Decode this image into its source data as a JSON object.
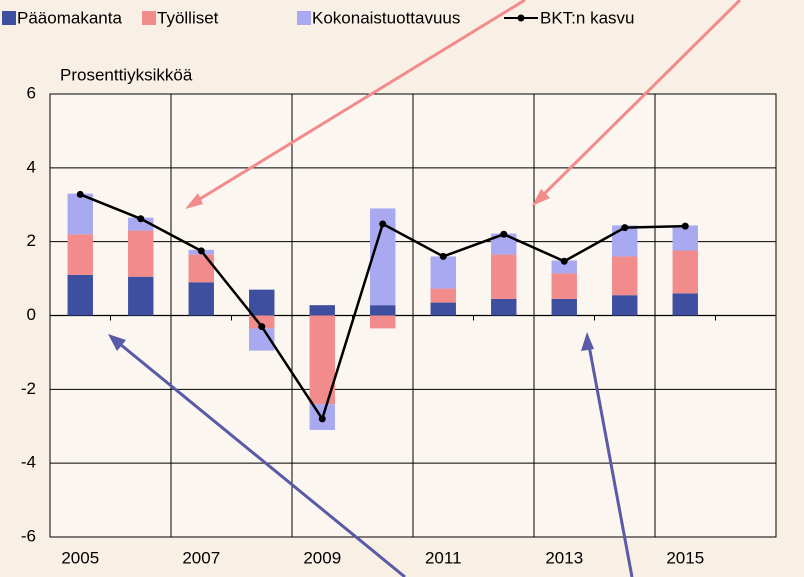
{
  "chart_data": {
    "type": "bar",
    "stacked": true,
    "ylabel": "Prosenttiyksikköä",
    "categories": [
      "2005",
      null,
      "2007",
      null,
      "2009",
      null,
      "2011",
      null,
      "2013",
      null,
      "2015",
      null
    ],
    "series": [
      {
        "name": "Pääomakanta",
        "color": "#3f4fa0",
        "values": [
          1.1,
          1.05,
          0.9,
          0.7,
          0.28,
          0.28,
          0.35,
          0.45,
          0.45,
          0.55,
          0.6,
          null
        ]
      },
      {
        "name": "Työlliset",
        "color": "#f28c8c",
        "values": [
          1.1,
          1.25,
          0.75,
          -0.35,
          -2.4,
          -0.35,
          0.38,
          1.2,
          0.69,
          1.05,
          1.16,
          null
        ]
      },
      {
        "name": "Kokonaistuottavuus",
        "color": "#a9a9f2",
        "values": [
          1.1,
          0.35,
          0.13,
          -0.6,
          -0.7,
          2.62,
          0.87,
          0.57,
          0.35,
          0.84,
          0.68,
          null
        ]
      },
      {
        "name": "BKT:n kasvu",
        "type": "line",
        "color": "#000000",
        "values": [
          3.28,
          2.62,
          1.75,
          -0.3,
          -2.8,
          2.48,
          1.6,
          2.2,
          1.47,
          2.38,
          2.42,
          null
        ]
      }
    ],
    "ylim": [
      -6,
      6
    ],
    "yticks": [
      -6,
      -4,
      -2,
      0,
      2,
      4,
      6
    ],
    "grid": true,
    "legend": "top"
  }
}
